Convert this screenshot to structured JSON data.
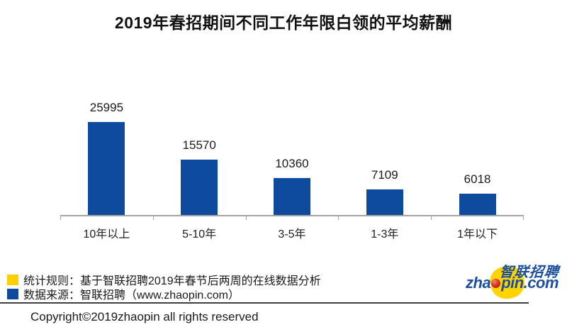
{
  "title": "2019年春招期间不同工作年限白领的平均薪酬",
  "chart_data": {
    "type": "bar",
    "title": "2019年春招期间不同工作年限白领的平均薪酬",
    "categories": [
      "10年以上",
      "5-10年",
      "3-5年",
      "1-3年",
      "1年以下"
    ],
    "values": [
      25995,
      15570,
      10360,
      7109,
      6018
    ],
    "xlabel": "",
    "ylabel": "",
    "ylim": [
      0,
      26000
    ],
    "grid": false,
    "legend_position": "none",
    "value_labels_shown": true,
    "bar_color": "#0e4b9e",
    "axis_color": "#a3a3a3"
  },
  "notes": [
    {
      "swatch_color": "#ffd000",
      "text": "统计规则：基于智联招聘2019年春节后两周的在线数据分析"
    },
    {
      "swatch_color": "#0e4b9e",
      "text": "数据来源：智联招聘（www.zhaopin.com）"
    }
  ],
  "logo": {
    "cjk": "智联招聘",
    "latin_prefix": "zha",
    "latin_suffix": "pin.com",
    "ellipse_color": "#ffd400",
    "dot_color": "#c8281e",
    "text_color": "#1c4f9f"
  },
  "footer": {
    "copyright": "Copyright©2019zhaopin all rights reserved"
  }
}
